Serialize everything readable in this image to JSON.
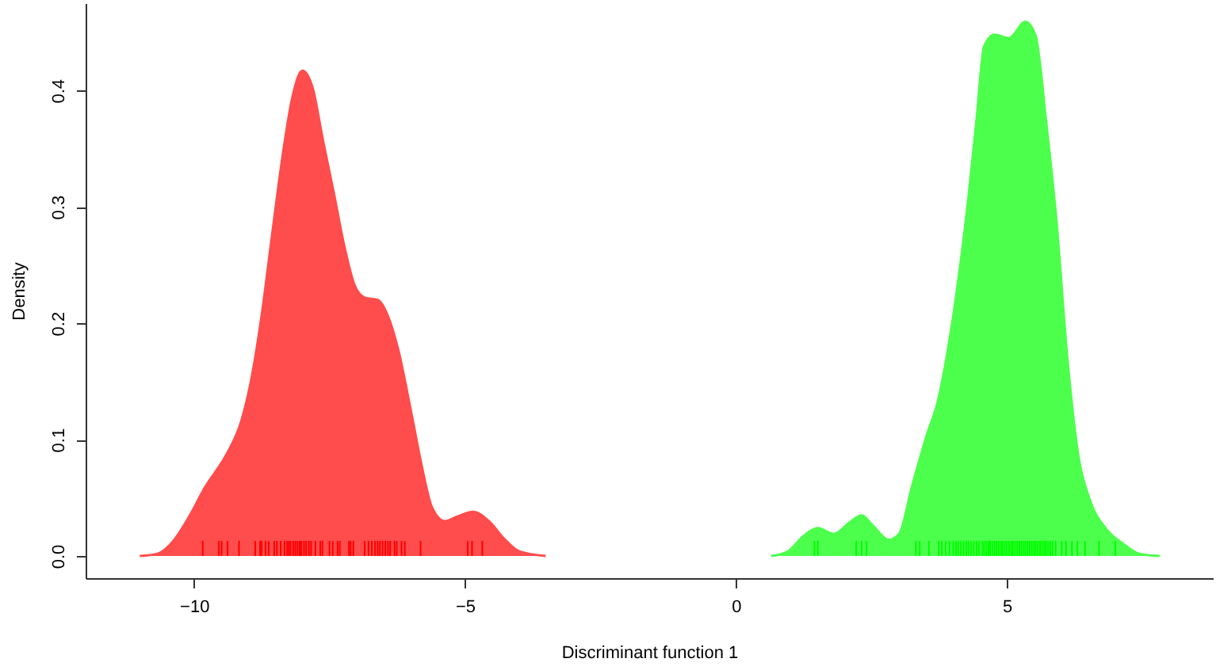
{
  "chart_data": {
    "type": "area",
    "xlabel": "Discriminant function 1",
    "ylabel": "Density",
    "xlim": [
      -12,
      8.8
    ],
    "ylim": [
      -0.019,
      0.475
    ],
    "xticks": [
      -10,
      -5,
      0,
      5
    ],
    "yticks": [
      {
        "value": 0,
        "label": "0.0"
      },
      0.1,
      0.2,
      0.3,
      0.4
    ],
    "grid": false,
    "series": [
      {
        "color": "#ff4c4c",
        "x": [
          -11.0,
          -10.67,
          -10.38,
          -10.1,
          -9.81,
          -9.38,
          -9.14,
          -8.95,
          -8.76,
          -8.57,
          -8.38,
          -8.19,
          -8.0,
          -7.81,
          -7.62,
          -7.42,
          -7.23,
          -7.04,
          -6.85,
          -6.61,
          -6.42,
          -6.23,
          -5.99,
          -5.8,
          -5.61,
          -5.37,
          -5.14,
          -4.85,
          -4.56,
          -4.28,
          -4.0,
          -3.51
        ],
        "values": [
          0,
          0.002,
          0.013,
          0.033,
          0.058,
          0.089,
          0.114,
          0.15,
          0.204,
          0.272,
          0.339,
          0.393,
          0.417,
          0.402,
          0.357,
          0.312,
          0.267,
          0.233,
          0.222,
          0.22,
          0.206,
          0.177,
          0.123,
          0.078,
          0.042,
          0.03,
          0.034,
          0.038,
          0.03,
          0.015,
          0.004,
          0
        ]
      },
      {
        "color": "#4cff4c",
        "x": [
          0.65,
          0.96,
          1.24,
          1.51,
          1.81,
          2.1,
          2.32,
          2.53,
          2.82,
          3.01,
          3.25,
          3.53,
          3.72,
          3.91,
          4.1,
          4.29,
          4.44,
          4.58,
          4.77,
          5.04,
          5.34,
          5.53,
          5.72,
          5.92,
          6.11,
          6.3,
          6.54,
          6.82,
          7.16,
          7.44,
          7.82
        ],
        "values": [
          0,
          0.004,
          0.017,
          0.024,
          0.019,
          0.029,
          0.035,
          0.026,
          0.014,
          0.019,
          0.06,
          0.105,
          0.132,
          0.177,
          0.236,
          0.308,
          0.375,
          0.438,
          0.448,
          0.445,
          0.459,
          0.447,
          0.375,
          0.285,
          0.173,
          0.092,
          0.047,
          0.024,
          0.01,
          0.002,
          0
        ]
      },
      {
        "type": "bar",
        "color": "#ff0000",
        "x": [
          -9.84,
          -9.54,
          -9.49,
          -9.38,
          -9.17,
          -8.87,
          -8.78,
          -8.75,
          -8.68,
          -8.62,
          -8.52,
          -8.47,
          -8.4,
          -8.33,
          -8.28,
          -8.25,
          -8.22,
          -8.17,
          -8.13,
          -8.09,
          -8.05,
          -8.02,
          -7.97,
          -7.93,
          -7.88,
          -7.84,
          -7.76,
          -7.67,
          -7.63,
          -7.5,
          -7.44,
          -7.35,
          -7.31,
          -7.14,
          -7.11,
          -7.06,
          -6.85,
          -6.78,
          -6.72,
          -6.66,
          -6.61,
          -6.57,
          -6.52,
          -6.47,
          -6.42,
          -6.38,
          -6.3,
          -6.26,
          -6.17,
          -6.11,
          -5.82,
          -4.95,
          -4.87,
          -4.68
        ],
        "values": [
          0.013,
          0.013,
          0.013,
          0.013,
          0.013,
          0.013,
          0.013,
          0.013,
          0.013,
          0.013,
          0.013,
          0.013,
          0.013,
          0.013,
          0.013,
          0.013,
          0.013,
          0.013,
          0.013,
          0.013,
          0.013,
          0.013,
          0.013,
          0.013,
          0.013,
          0.013,
          0.013,
          0.013,
          0.013,
          0.013,
          0.013,
          0.013,
          0.013,
          0.013,
          0.013,
          0.013,
          0.013,
          0.013,
          0.013,
          0.013,
          0.013,
          0.013,
          0.013,
          0.013,
          0.013,
          0.013,
          0.013,
          0.013,
          0.013,
          0.013,
          0.013,
          0.013,
          0.013,
          0.013
        ]
      },
      {
        "type": "bar",
        "color": "#00ff00",
        "x": [
          1.45,
          1.51,
          2.22,
          2.32,
          2.41,
          3.32,
          3.39,
          3.56,
          3.74,
          3.8,
          3.87,
          3.94,
          4.01,
          4.06,
          4.1,
          4.15,
          4.2,
          4.25,
          4.29,
          4.34,
          4.39,
          4.44,
          4.48,
          4.55,
          4.58,
          4.62,
          4.66,
          4.69,
          4.73,
          4.77,
          4.81,
          4.85,
          4.89,
          4.92,
          4.96,
          5.0,
          5.04,
          5.08,
          5.11,
          5.15,
          5.19,
          5.23,
          5.27,
          5.31,
          5.34,
          5.38,
          5.42,
          5.46,
          5.5,
          5.53,
          5.57,
          5.61,
          5.65,
          5.69,
          5.72,
          5.76,
          5.8,
          5.84,
          5.9,
          6.01,
          6.09,
          6.2,
          6.3,
          6.44,
          6.7,
          7.0
        ],
        "values": [
          0.013,
          0.013,
          0.013,
          0.013,
          0.013,
          0.013,
          0.013,
          0.013,
          0.013,
          0.013,
          0.013,
          0.013,
          0.013,
          0.013,
          0.013,
          0.013,
          0.013,
          0.013,
          0.013,
          0.013,
          0.013,
          0.013,
          0.013,
          0.013,
          0.013,
          0.013,
          0.013,
          0.013,
          0.013,
          0.013,
          0.013,
          0.013,
          0.013,
          0.013,
          0.013,
          0.013,
          0.013,
          0.013,
          0.013,
          0.013,
          0.013,
          0.013,
          0.013,
          0.013,
          0.013,
          0.013,
          0.013,
          0.013,
          0.013,
          0.013,
          0.013,
          0.013,
          0.013,
          0.013,
          0.013,
          0.013,
          0.013,
          0.013,
          0.013,
          0.013,
          0.013,
          0.013,
          0.013,
          0.013,
          0.013,
          0.013
        ]
      }
    ]
  }
}
